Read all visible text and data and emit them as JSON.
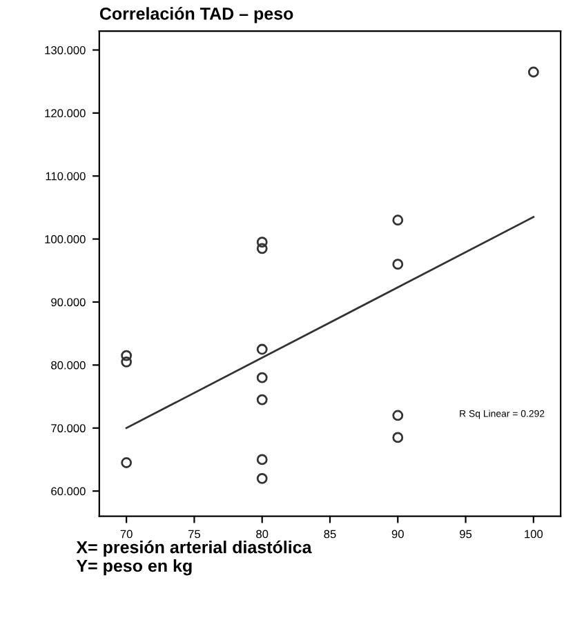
{
  "chart_data": {
    "type": "scatter",
    "title": "Correlación TAD – peso",
    "xlabel": "X= presión arterial diastólica\nY= peso en kg",
    "series": [
      {
        "color": "#333333",
        "marker": "circle",
        "x": [
          70,
          70,
          70,
          80,
          80,
          80,
          80,
          80,
          80,
          80,
          90,
          90,
          90,
          90,
          100
        ],
        "values": [
          81.5,
          80.5,
          64.5,
          99.5,
          98.5,
          82.5,
          78,
          74.5,
          65,
          62,
          103,
          96,
          72,
          68.5,
          126.5
        ]
      },
      {
        "type": "line",
        "color": "#333333",
        "marker": "none",
        "line_style": "solid",
        "x": [
          70,
          100
        ],
        "values": [
          70,
          103.5
        ]
      }
    ],
    "annotations": [
      "R Sq Linear = 0.292"
    ],
    "xlim": [
      68,
      102
    ],
    "ylim": [
      56,
      133
    ],
    "xticks": [
      70,
      75,
      80,
      85,
      90,
      95,
      100
    ],
    "yticks": [
      {
        "value": 60,
        "label": "60.000"
      },
      {
        "value": 70,
        "label": "70.000"
      },
      {
        "value": 80,
        "label": "80.000"
      },
      {
        "value": 90,
        "label": "90.000"
      },
      {
        "value": 100,
        "label": "100.000"
      },
      {
        "value": 110,
        "label": "110.000"
      },
      {
        "value": 120,
        "label": "120.000"
      },
      {
        "value": 130,
        "label": "130.000"
      }
    ],
    "grid": false,
    "legend": false
  }
}
